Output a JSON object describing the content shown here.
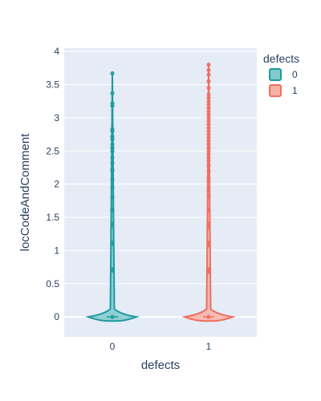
{
  "chart_data": {
    "type": "violin",
    "title": "",
    "xlabel": "defects",
    "ylabel": "locCodeAndComment",
    "categories": [
      "0",
      "1"
    ],
    "ylim": [
      -0.3,
      4.05
    ],
    "yticks": [
      "0",
      "0.5",
      "1",
      "1.5",
      "2",
      "2.5",
      "3",
      "3.5",
      "4"
    ],
    "grid": true,
    "legend": {
      "title": "defects",
      "position": "top-right",
      "entries": [
        "0",
        "1"
      ]
    },
    "series": [
      {
        "name": "0",
        "category": "0",
        "color": "#1f9aa0",
        "fill": "#7fcacc",
        "density_peak": 0.0,
        "points": [
          0,
          0.7,
          0.72,
          1.1,
          1.12,
          1.38,
          1.4,
          1.6,
          1.62,
          1.8,
          1.95,
          2.07,
          2.2,
          2.22,
          2.32,
          2.4,
          2.5,
          2.55,
          2.6,
          2.68,
          2.72,
          2.8,
          2.83,
          3.18,
          3.22,
          3.37,
          3.67
        ]
      },
      {
        "name": "1",
        "category": "1",
        "color": "#ef6f5f",
        "fill": "#f7b1a8",
        "density_peak": 0.0,
        "points": [
          0,
          0.68,
          0.7,
          0.72,
          1.08,
          1.1,
          1.12,
          1.35,
          1.38,
          1.4,
          1.6,
          1.62,
          1.82,
          1.9,
          1.95,
          2.05,
          2.1,
          2.2,
          2.28,
          2.35,
          2.4,
          2.45,
          2.5,
          2.55,
          2.6,
          2.65,
          2.7,
          2.75,
          2.8,
          2.85,
          2.9,
          2.95,
          3.0,
          3.05,
          3.1,
          3.15,
          3.2,
          3.25,
          3.3,
          3.35,
          3.45,
          3.55,
          3.65,
          3.72,
          3.8
        ]
      }
    ]
  }
}
